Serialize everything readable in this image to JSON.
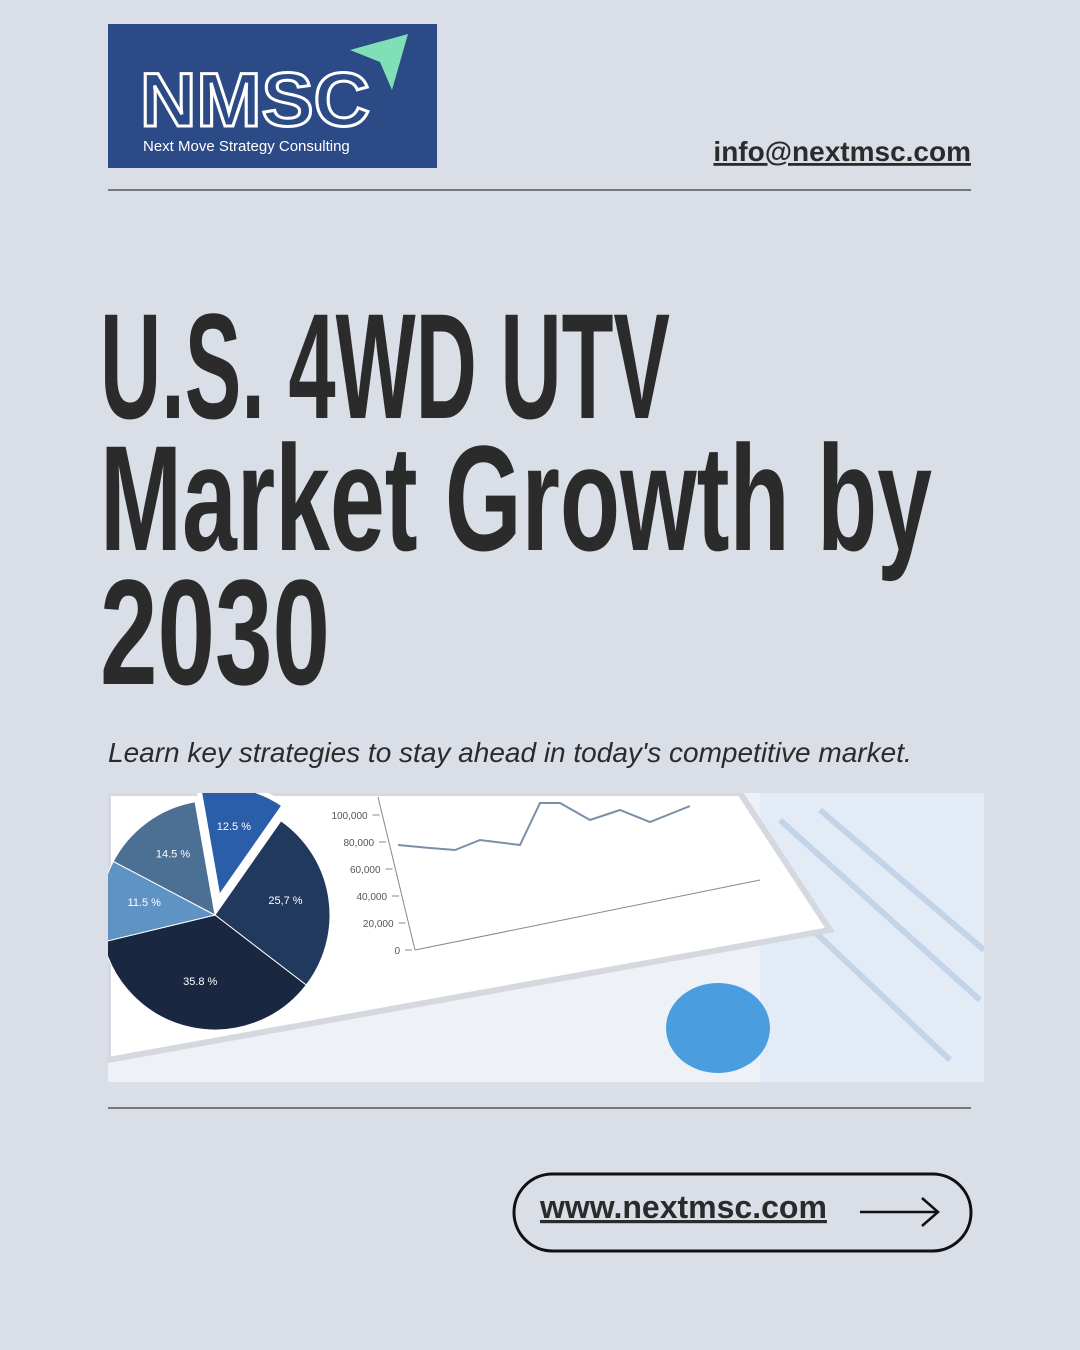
{
  "logo": {
    "brand": "NMSC",
    "tagline": "Next Move Strategy Consulting"
  },
  "contact": {
    "email": "info@nextmsc.com"
  },
  "headline": {
    "lines": [
      "U.S. 4WD UTV",
      "Market Growth by",
      "2030"
    ]
  },
  "subtitle": "Learn key strategies to stay ahead in today's competitive market.",
  "illustration": {
    "pie": [
      {
        "value": 12.5,
        "label": "12.5 %",
        "color": "#2a5ea8"
      },
      {
        "value": 25.7,
        "label": "25,7 %",
        "color": "#22395e"
      },
      {
        "value": 35.8,
        "label": "35.8 %",
        "color": "#1a2740"
      },
      {
        "value": 11.5,
        "label": "11.5 %",
        "color": "#5f93c4"
      },
      {
        "value": 14.5,
        "label": "14.5 %",
        "color": "#4c6f94"
      }
    ],
    "ylim": [
      0,
      100000
    ],
    "yticks": [
      0,
      {
        "value": 20000,
        "label": "20,000"
      },
      {
        "value": 40000,
        "label": "40,000"
      },
      {
        "value": 60000,
        "label": "60,000"
      },
      {
        "value": 80000,
        "label": "80,000"
      },
      {
        "value": 100000,
        "label": "100,000"
      }
    ]
  },
  "cta": {
    "url": "www.nextmsc.com"
  }
}
